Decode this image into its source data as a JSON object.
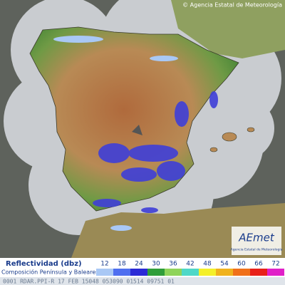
{
  "header": {
    "credit": "© Agencia Estatal de Meteorología"
  },
  "legend": {
    "title": "Reflectividad (dbz)",
    "subtitle": "Composición Península y Baleares",
    "levels": [
      {
        "value": 12,
        "color": "#a9c8f5"
      },
      {
        "value": 18,
        "color": "#4f6ff0"
      },
      {
        "value": 24,
        "color": "#2a2ad6"
      },
      {
        "value": 30,
        "color": "#2f9e3a"
      },
      {
        "value": 36,
        "color": "#8fd45a"
      },
      {
        "value": 42,
        "color": "#4fd8c8"
      },
      {
        "value": 48,
        "color": "#f4f02a"
      },
      {
        "value": 54,
        "color": "#f0b21e"
      },
      {
        "value": 60,
        "color": "#f0701a"
      },
      {
        "value": 66,
        "color": "#e8201a"
      },
      {
        "value": 72,
        "color": "#e020c8"
      }
    ]
  },
  "logo": {
    "name": "AEmet",
    "tagline": "Agencia Estatal de Meteorología"
  },
  "footer": {
    "code": "0001 RDAR.PPI-R  17 FEB 15048 053090 01514 09751 01"
  }
}
